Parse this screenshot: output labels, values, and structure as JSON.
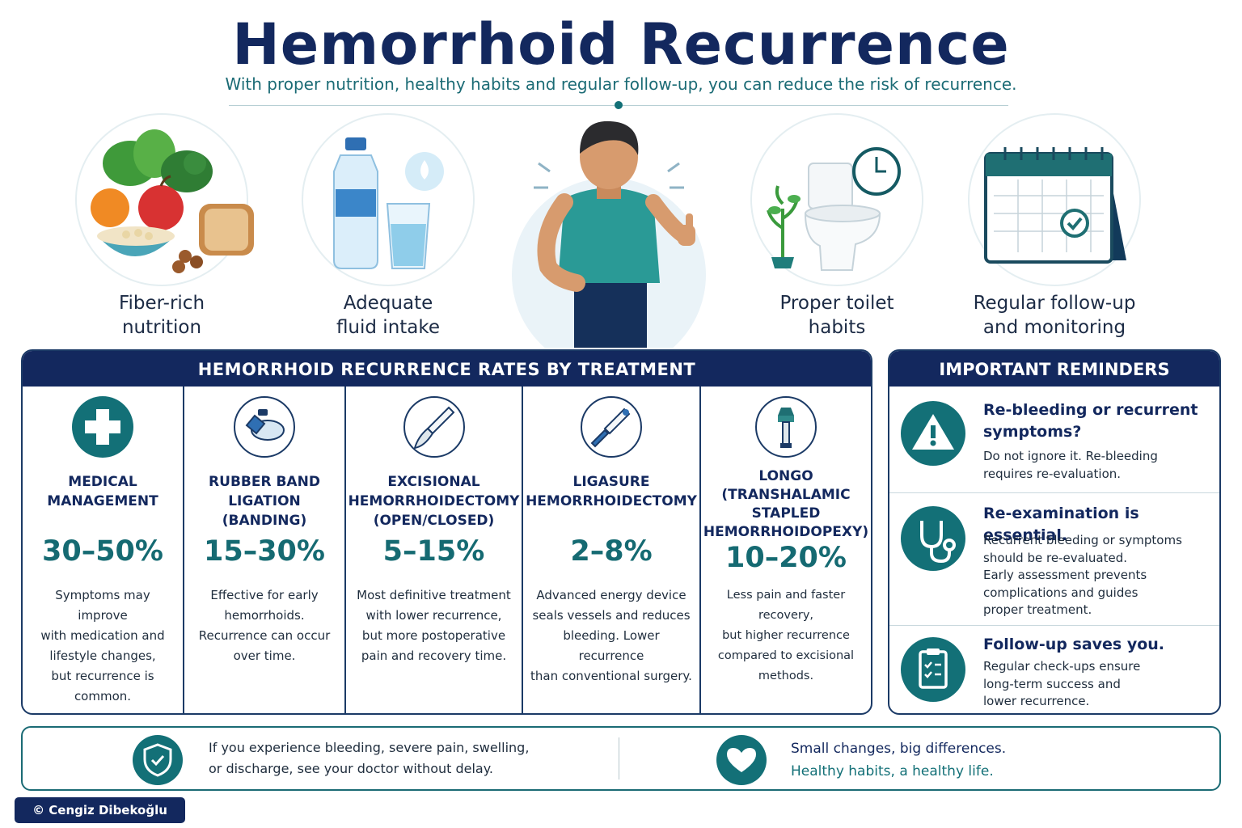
{
  "header": {
    "title": "Hemorrhoid Recurrence",
    "subtitle": "With proper nutrition, healthy habits and regular follow-up, you can reduce the risk of recurrence."
  },
  "habits": [
    {
      "label_line1": "Fiber-rich",
      "label_line2": "nutrition",
      "icon": "vegetables-fruit-bread-icon"
    },
    {
      "label_line1": "Adequate",
      "label_line2": "fluid intake",
      "icon": "water-bottle-glass-icon"
    },
    {
      "label_line1": "Proper toilet",
      "label_line2": "habits",
      "icon": "toilet-clock-icon"
    },
    {
      "label_line1": "Regular follow-up",
      "label_line2": "and monitoring",
      "icon": "calendar-check-icon"
    }
  ],
  "treatments": {
    "heading": "HEMORRHOID RECURRENCE RATES BY TREATMENT",
    "items": [
      {
        "name_lines": [
          "MEDICAL",
          "MANAGEMENT"
        ],
        "rate": "30–50%",
        "icon": "medical-cross-icon",
        "desc_lines": [
          "Symptoms may improve",
          "with medication and",
          "lifestyle changes,",
          "but recurrence is",
          "common."
        ]
      },
      {
        "name_lines": [
          "RUBBER BAND",
          "LIGATION",
          "(BANDING)"
        ],
        "rate": "15–30%",
        "icon": "rubber-band-icon",
        "desc_lines": [
          "Effective for early",
          "hemorrhoids.",
          "Recurrence can occur",
          "over time."
        ]
      },
      {
        "name_lines": [
          "EXCISIONAL",
          "HEMORRHOIDECTOMY",
          "(OPEN/CLOSED)"
        ],
        "rate": "5–15%",
        "icon": "scalpel-icon",
        "desc_lines": [
          "Most definitive treatment",
          "with lower recurrence,",
          "but more postoperative",
          "pain and recovery time."
        ]
      },
      {
        "name_lines": [
          "LIGASURE",
          "HEMORRHOIDECTOMY"
        ],
        "rate": "2–8%",
        "icon": "energy-device-icon",
        "desc_lines": [
          "Advanced energy device",
          "seals vessels and reduces",
          "bleeding. Lower recurrence",
          "than conventional surgery."
        ]
      },
      {
        "name_lines": [
          "LONGO",
          "(TRANSHALAMIC",
          "STAPLED",
          "HEMORRHOIDOPEXY)"
        ],
        "rate": "10–20%",
        "icon": "stapler-icon",
        "desc_lines": [
          "Less pain and faster recovery,",
          "but higher recurrence",
          "compared to excisional",
          "methods."
        ]
      }
    ]
  },
  "reminders": {
    "heading": "IMPORTANT REMINDERS",
    "items": [
      {
        "title_lines": [
          "Re-bleeding or recurrent",
          "symptoms?"
        ],
        "icon": "warning-icon",
        "text_lines": [
          "Do not ignore it. Re-bleeding",
          "requires re-evaluation."
        ]
      },
      {
        "title_lines": [
          "Re-examination is essential."
        ],
        "icon": "stethoscope-icon",
        "text_lines": [
          "Recurrent bleeding or symptoms",
          "should be re-evaluated.",
          "Early assessment prevents",
          "complications and guides",
          "proper treatment."
        ]
      },
      {
        "title_lines": [
          "Follow-up saves you."
        ],
        "icon": "clipboard-checklist-icon",
        "text_lines": [
          "Regular check-ups ensure",
          "long-term success and",
          "lower recurrence."
        ]
      }
    ]
  },
  "banner": {
    "left_line1": "If you experience bleeding, severe pain, swelling,",
    "left_line2": "or discharge, see your doctor without delay.",
    "right_line1": "Small changes, big differences.",
    "right_line2": "Healthy habits, a healthy life."
  },
  "footer": {
    "copyright": "© Cengiz Dibekoğlu"
  },
  "colors": {
    "navy": "#13285e",
    "teal": "#137077",
    "text": "#1f2d3d"
  }
}
